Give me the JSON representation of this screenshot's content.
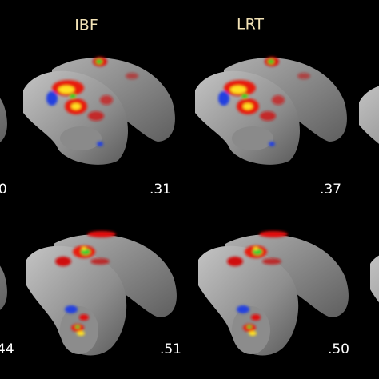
{
  "column_titles": [
    "IBF",
    "LRT"
  ],
  "rows": [
    {
      "values": [
        "0",
        ".31",
        ".37"
      ]
    },
    {
      "values": [
        "44",
        ".51",
        ".50"
      ]
    }
  ]
}
